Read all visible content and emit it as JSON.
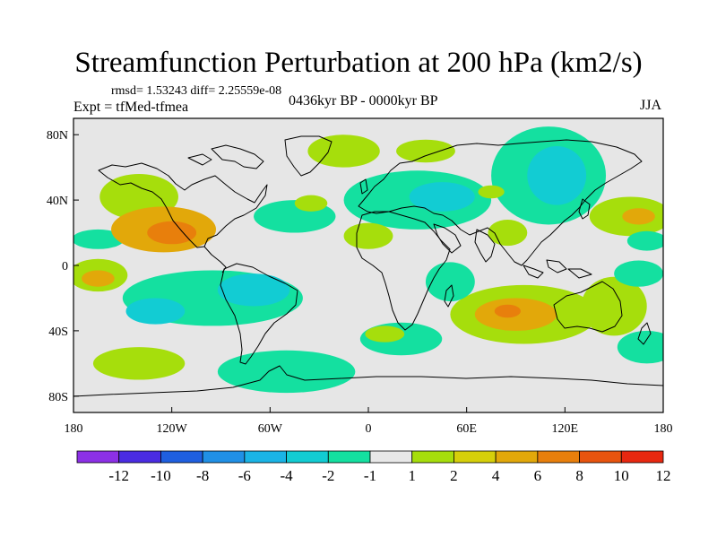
{
  "header": {
    "title": "Streamfunction Perturbation at 200 hPa (km2/s)",
    "rmsd_line": "rmsd= 1.53243 diff= 2.25559e-08",
    "expt_line": "Expt = tfMed-tfmea",
    "period_line": "0436kyr BP - 0000kyr BP",
    "season": "JJA"
  },
  "map": {
    "projection": "cylindrical-equidistant",
    "lon_range": [
      -180,
      180
    ],
    "lat_range": [
      -90,
      90
    ],
    "background_color": "#e6e6e6",
    "x_ticks": [
      {
        "lon": -180,
        "label": "180"
      },
      {
        "lon": -120,
        "label": "120W"
      },
      {
        "lon": -60,
        "label": "60W"
      },
      {
        "lon": 0,
        "label": "0"
      },
      {
        "lon": 60,
        "label": "60E"
      },
      {
        "lon": 120,
        "label": "120E"
      },
      {
        "lon": 180,
        "label": "180"
      }
    ],
    "y_ticks": [
      {
        "lat": 80,
        "label": "80N"
      },
      {
        "lat": 40,
        "label": "40N"
      },
      {
        "lat": 0,
        "label": "0"
      },
      {
        "lat": -40,
        "label": "40S"
      },
      {
        "lat": -80,
        "label": "80S"
      }
    ],
    "anomalies": [
      {
        "lon": -125,
        "lat": 22,
        "rx": 32,
        "ry": 14,
        "level": 4
      },
      {
        "lon": -120,
        "lat": 20,
        "rx": 15,
        "ry": 7,
        "level": 6
      },
      {
        "lon": -140,
        "lat": 42,
        "rx": 24,
        "ry": 14,
        "level": 2
      },
      {
        "lon": -165,
        "lat": -6,
        "rx": 18,
        "ry": 10,
        "level": 2
      },
      {
        "lon": -165,
        "lat": -8,
        "rx": 10,
        "ry": 5,
        "level": 4
      },
      {
        "lon": -165,
        "lat": 16,
        "rx": 16,
        "ry": 6,
        "level": -2
      },
      {
        "lon": -95,
        "lat": -20,
        "rx": 55,
        "ry": 17,
        "level": -2
      },
      {
        "lon": -130,
        "lat": -28,
        "rx": 18,
        "ry": 8,
        "level": -4
      },
      {
        "lon": -70,
        "lat": -15,
        "rx": 22,
        "ry": 10,
        "level": -4
      },
      {
        "lon": -140,
        "lat": -60,
        "rx": 28,
        "ry": 10,
        "level": 2
      },
      {
        "lon": -50,
        "lat": -65,
        "rx": 42,
        "ry": 13,
        "level": -2
      },
      {
        "lon": -45,
        "lat": 30,
        "rx": 25,
        "ry": 10,
        "level": -2
      },
      {
        "lon": -35,
        "lat": 38,
        "rx": 10,
        "ry": 5,
        "level": 2
      },
      {
        "lon": -15,
        "lat": 70,
        "rx": 22,
        "ry": 10,
        "level": 2
      },
      {
        "lon": 35,
        "lat": 70,
        "rx": 18,
        "ry": 7,
        "level": 2
      },
      {
        "lon": 30,
        "lat": 40,
        "rx": 45,
        "ry": 18,
        "level": -2
      },
      {
        "lon": 45,
        "lat": 42,
        "rx": 20,
        "ry": 9,
        "level": -4
      },
      {
        "lon": 75,
        "lat": 45,
        "rx": 8,
        "ry": 4,
        "level": 2
      },
      {
        "lon": 0,
        "lat": 18,
        "rx": 15,
        "ry": 8,
        "level": 2
      },
      {
        "lon": 85,
        "lat": 20,
        "rx": 12,
        "ry": 8,
        "level": 2
      },
      {
        "lon": 110,
        "lat": 55,
        "rx": 35,
        "ry": 30,
        "level": -2
      },
      {
        "lon": 115,
        "lat": 55,
        "rx": 18,
        "ry": 18,
        "level": -4
      },
      {
        "lon": 160,
        "lat": 30,
        "rx": 25,
        "ry": 12,
        "level": 2
      },
      {
        "lon": 165,
        "lat": 30,
        "rx": 10,
        "ry": 5,
        "level": 4
      },
      {
        "lon": 170,
        "lat": 15,
        "rx": 12,
        "ry": 6,
        "level": -2
      },
      {
        "lon": 50,
        "lat": -10,
        "rx": 15,
        "ry": 12,
        "level": -2
      },
      {
        "lon": 95,
        "lat": -30,
        "rx": 45,
        "ry": 18,
        "level": 2
      },
      {
        "lon": 90,
        "lat": -30,
        "rx": 25,
        "ry": 10,
        "level": 4
      },
      {
        "lon": 85,
        "lat": -28,
        "rx": 8,
        "ry": 4,
        "level": 6
      },
      {
        "lon": 150,
        "lat": -25,
        "rx": 20,
        "ry": 18,
        "level": 2
      },
      {
        "lon": 165,
        "lat": -5,
        "rx": 15,
        "ry": 8,
        "level": -2
      },
      {
        "lon": 20,
        "lat": -45,
        "rx": 25,
        "ry": 10,
        "level": -2
      },
      {
        "lon": 10,
        "lat": -42,
        "rx": 12,
        "ry": 5,
        "level": 2
      },
      {
        "lon": 170,
        "lat": -50,
        "rx": 18,
        "ry": 10,
        "level": -2
      }
    ]
  },
  "colorbar": {
    "colors": [
      "#8c30e6",
      "#4a2ce2",
      "#1f5fe0",
      "#2090e6",
      "#1ab4e6",
      "#12ccd3",
      "#14e0a0",
      "#e8e8e8",
      "#a6de0c",
      "#d6cf0a",
      "#e2a80a",
      "#e87f0c",
      "#e8540e",
      "#e82810"
    ],
    "labels": [
      "-12",
      "-10",
      "-8",
      "-6",
      "-4",
      "-2",
      "-1",
      "1",
      "2",
      "4",
      "6",
      "8",
      "10",
      "12"
    ]
  }
}
